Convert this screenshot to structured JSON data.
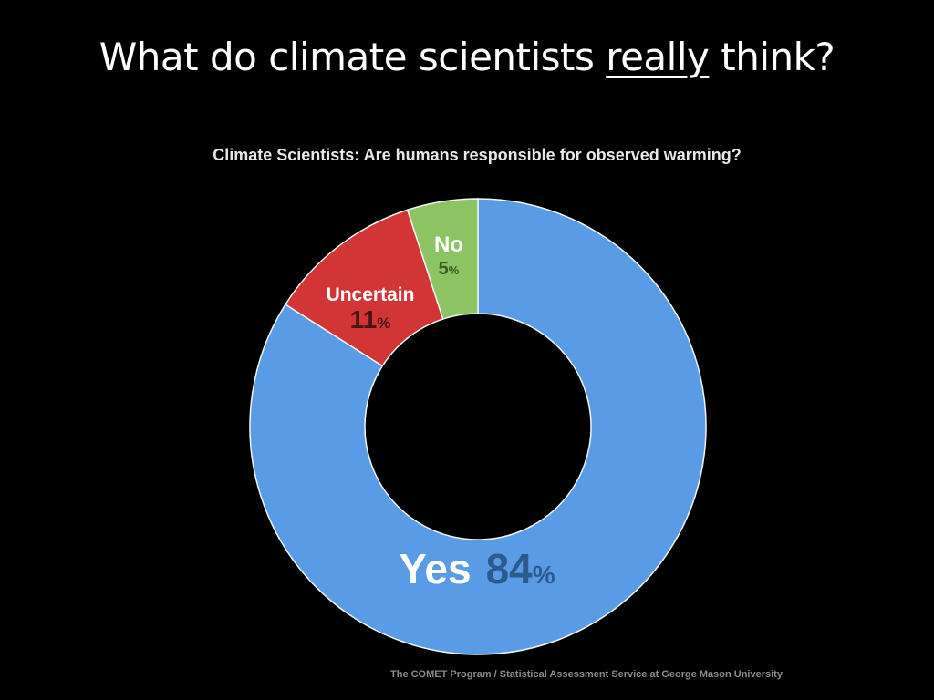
{
  "slide": {
    "title_before": "What do climate scientists ",
    "title_emphasis": "really",
    "title_after": " think?"
  },
  "chart_data": {
    "type": "pie",
    "title": "Climate Scientists: Are humans responsible for observed warming?",
    "value_suffix": "%",
    "slices": [
      {
        "label": "Yes",
        "value": 84,
        "color": "#5a9be6",
        "value_color": "#2d5a8c"
      },
      {
        "label": "Uncertain",
        "value": 11,
        "color": "#d23535",
        "value_color": "#4a1414"
      },
      {
        "label": "No",
        "value": 5,
        "color": "#8cc463",
        "value_color": "#3c5c22"
      }
    ]
  },
  "source": "The COMET Program / Statistical Assessment Service at George Mason University",
  "colors": {
    "background": "#000000",
    "label_text": "#ffffff"
  }
}
